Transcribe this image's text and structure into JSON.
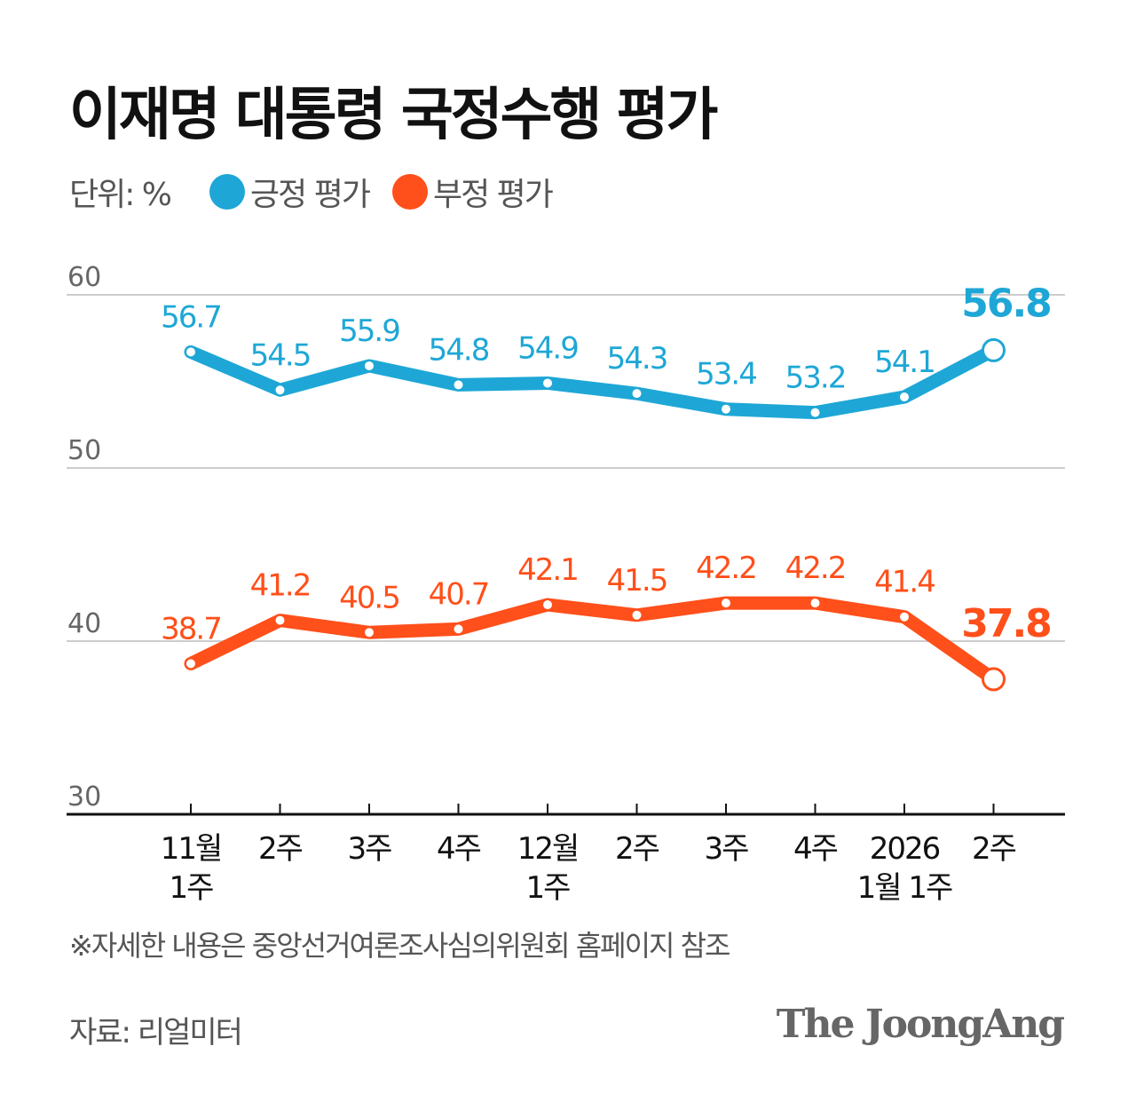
{
  "chart_data": {
    "type": "line",
    "title": "이재명 대통령 국정수행 평가",
    "unit_label": "단위: %",
    "categories": [
      [
        "11월",
        "1주"
      ],
      [
        "2주"
      ],
      [
        "3주"
      ],
      [
        "4주"
      ],
      [
        "12월",
        "1주"
      ],
      [
        "2주"
      ],
      [
        "3주"
      ],
      [
        "4주"
      ],
      [
        "2026",
        "1월 1주"
      ],
      [
        "2주"
      ]
    ],
    "series": [
      {
        "name": "긍정 평가",
        "color": "#1ea7d6",
        "values": [
          56.7,
          54.5,
          55.9,
          54.8,
          54.9,
          54.3,
          53.4,
          53.2,
          54.1,
          56.8
        ]
      },
      {
        "name": "부정 평가",
        "color": "#ff4f1a",
        "values": [
          38.7,
          41.2,
          40.5,
          40.7,
          42.1,
          41.5,
          42.2,
          42.2,
          41.4,
          37.8
        ]
      }
    ],
    "yticks": [
      60,
      50,
      40,
      30
    ],
    "ylim": [
      30,
      60
    ],
    "grid": true,
    "legend_placement": "top-left"
  },
  "note": "※자세한 내용은 중앙선거여론조사심의위원회 홈페이지 참조",
  "source": "자료: 리얼미터",
  "logo": "The JoongAng"
}
